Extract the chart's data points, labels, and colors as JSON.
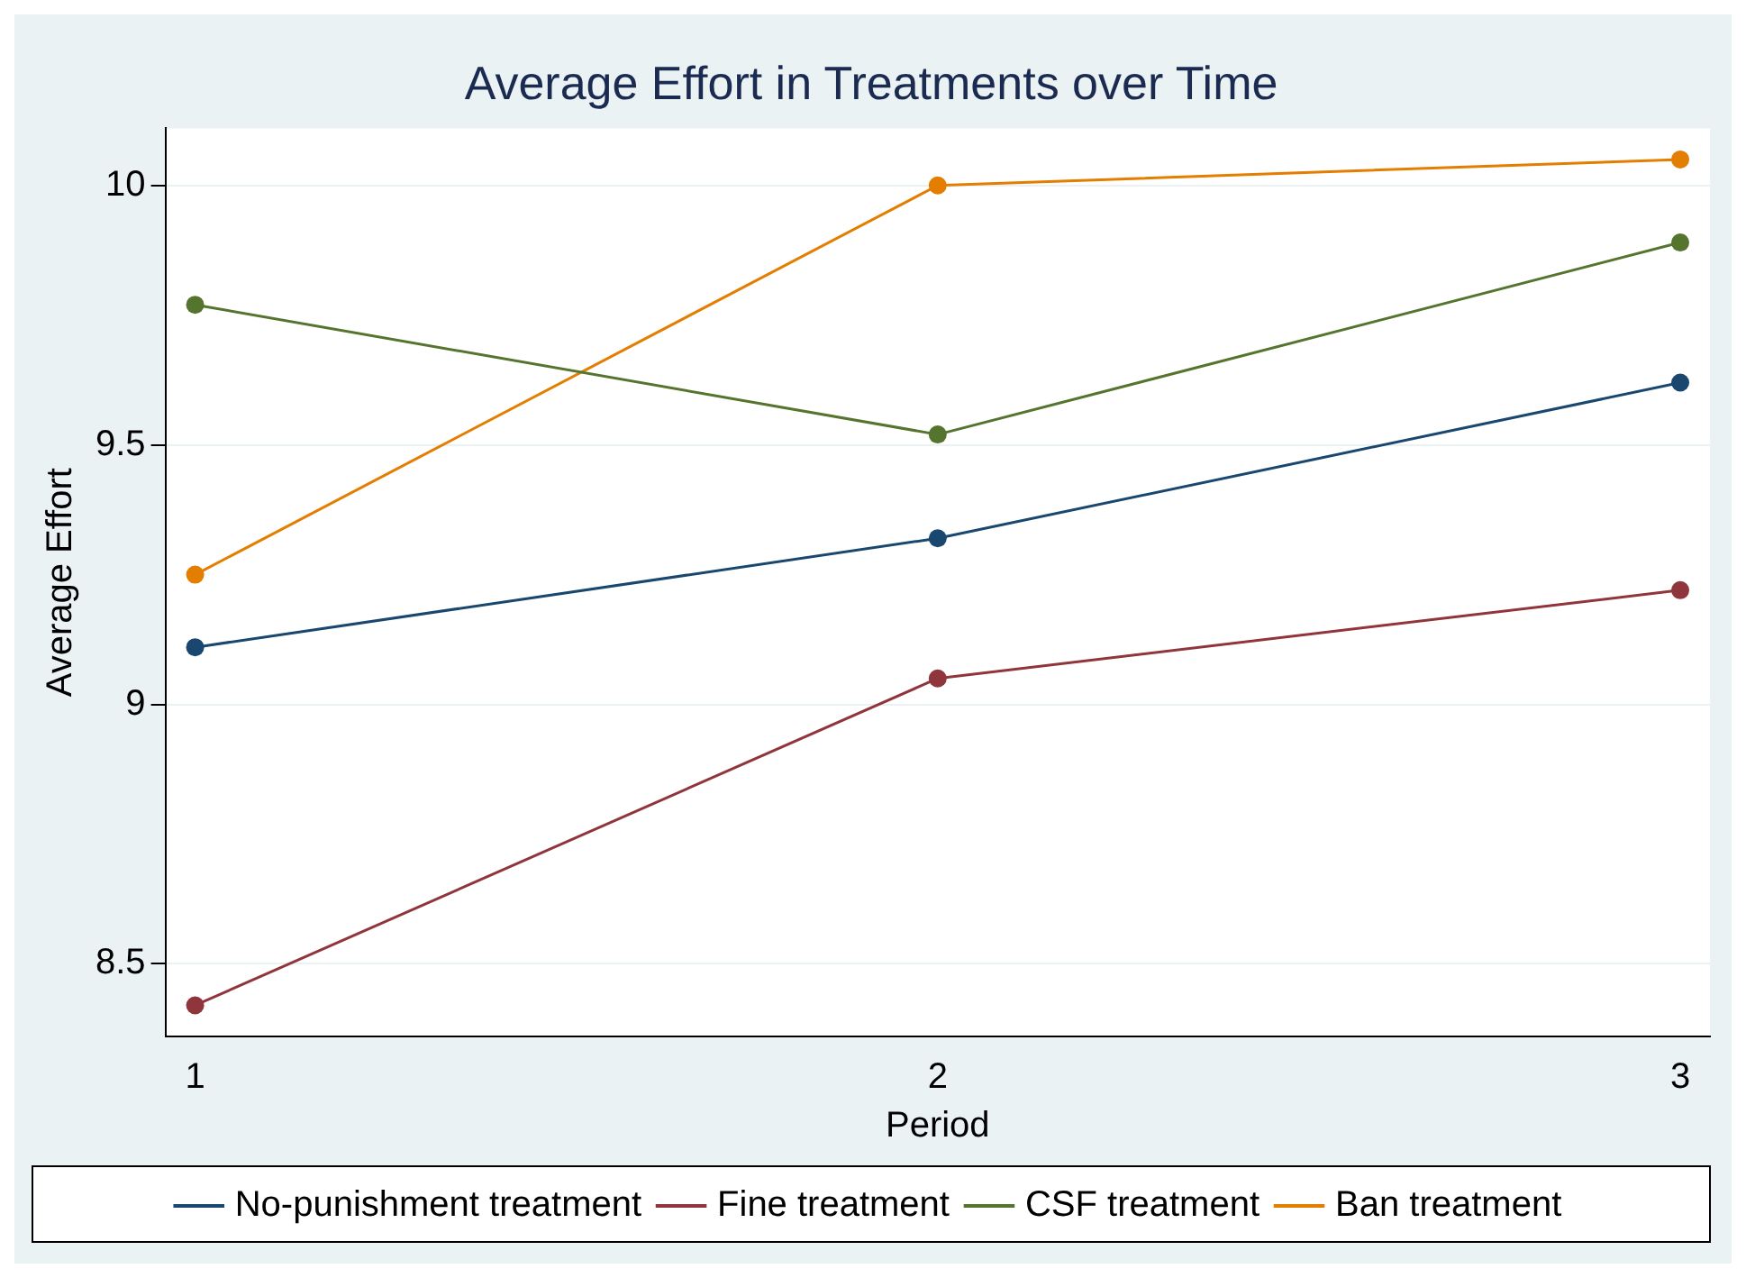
{
  "chart_data": {
    "type": "line",
    "title": "Average Effort in Treatments over Time",
    "xlabel": "Period",
    "ylabel": "Average Effort",
    "x": [
      1,
      2,
      3
    ],
    "series": [
      {
        "name": "No-punishment treatment",
        "color": "#1a476f",
        "values": [
          9.11,
          9.32,
          9.62
        ]
      },
      {
        "name": "Fine treatment",
        "color": "#90353b",
        "values": [
          8.42,
          9.05,
          9.22
        ]
      },
      {
        "name": "CSF treatment",
        "color": "#55752f",
        "values": [
          9.77,
          9.52,
          9.89
        ]
      },
      {
        "name": "Ban treatment",
        "color": "#e37e00",
        "values": [
          9.25,
          10.0,
          10.05
        ]
      }
    ],
    "xlim": [
      0.96,
      3.04
    ],
    "xticks": [
      1,
      2,
      3
    ],
    "ylim": [
      8.36,
      10.11
    ],
    "yticks": [
      8.5,
      9,
      9.5,
      {
        "value": 10,
        "label": "10"
      }
    ],
    "grid": "y",
    "legend": "bottom",
    "marker": "circle",
    "line_style": "solid"
  }
}
